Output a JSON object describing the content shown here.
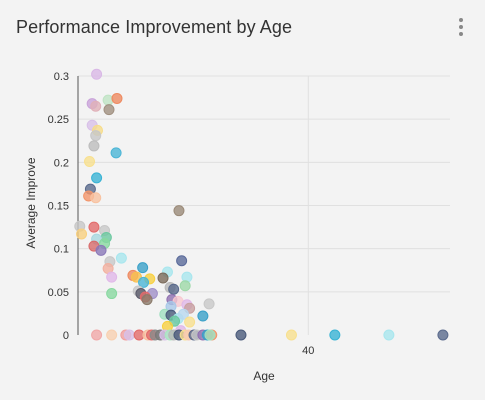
{
  "header": {
    "title": "Performance Improvement by Age",
    "menu_icon": "more-vert-icon"
  },
  "chart_data": {
    "type": "scatter",
    "title": "Performance Improvement by Age",
    "xlabel": "Age",
    "ylabel": "Average Improve",
    "xlim": [
      14,
      56
    ],
    "ylim": [
      0,
      0.3
    ],
    "x_ticks": [
      40
    ],
    "y_ticks": [
      0,
      0.05,
      0.1,
      0.15,
      0.2,
      0.25,
      0.3
    ],
    "grid": true,
    "legend": "none",
    "points": [
      {
        "x": 16.1,
        "y": 0.302,
        "c": "#d9b8e6"
      },
      {
        "x": 15.6,
        "y": 0.268,
        "c": "#c9a3d9"
      },
      {
        "x": 16.0,
        "y": 0.265,
        "c": "#e0b0b8"
      },
      {
        "x": 17.4,
        "y": 0.272,
        "c": "#bfe3c4"
      },
      {
        "x": 17.5,
        "y": 0.261,
        "c": "#a09080"
      },
      {
        "x": 18.4,
        "y": 0.274,
        "c": "#ee8a60"
      },
      {
        "x": 15.6,
        "y": 0.243,
        "c": "#d8c0e8"
      },
      {
        "x": 16.2,
        "y": 0.237,
        "c": "#f6dc8a"
      },
      {
        "x": 16.0,
        "y": 0.231,
        "c": "#c7c7c7"
      },
      {
        "x": 15.8,
        "y": 0.219,
        "c": "#bdbdbd"
      },
      {
        "x": 18.3,
        "y": 0.211,
        "c": "#4bb5d6"
      },
      {
        "x": 15.3,
        "y": 0.201,
        "c": "#f8e08e"
      },
      {
        "x": 16.1,
        "y": 0.182,
        "c": "#39b3d4"
      },
      {
        "x": 15.4,
        "y": 0.169,
        "c": "#5a6a8c"
      },
      {
        "x": 15.2,
        "y": 0.161,
        "c": "#f2956a"
      },
      {
        "x": 16.0,
        "y": 0.159,
        "c": "#f8c2a0"
      },
      {
        "x": 25.4,
        "y": 0.144,
        "c": "#9a8a78"
      },
      {
        "x": 14.2,
        "y": 0.126,
        "c": "#c7c7c7"
      },
      {
        "x": 15.8,
        "y": 0.125,
        "c": "#e26a6a"
      },
      {
        "x": 17.0,
        "y": 0.121,
        "c": "#c8c8c8"
      },
      {
        "x": 14.4,
        "y": 0.117,
        "c": "#f8d080"
      },
      {
        "x": 17.2,
        "y": 0.113,
        "c": "#6cc8a0"
      },
      {
        "x": 16.1,
        "y": 0.111,
        "c": "#a8d8e0"
      },
      {
        "x": 17.0,
        "y": 0.106,
        "c": "#88d8a0"
      },
      {
        "x": 15.8,
        "y": 0.103,
        "c": "#d86a6a"
      },
      {
        "x": 16.6,
        "y": 0.098,
        "c": "#8a78b8"
      },
      {
        "x": 18.9,
        "y": 0.089,
        "c": "#a8e6ee"
      },
      {
        "x": 25.7,
        "y": 0.086,
        "c": "#5a6a9a"
      },
      {
        "x": 17.6,
        "y": 0.085,
        "c": "#c8c8c8"
      },
      {
        "x": 21.3,
        "y": 0.078,
        "c": "#39a0c8"
      },
      {
        "x": 17.4,
        "y": 0.077,
        "c": "#f2b0a0"
      },
      {
        "x": 24.1,
        "y": 0.073,
        "c": "#a8e6ee"
      },
      {
        "x": 20.2,
        "y": 0.069,
        "c": "#ee8a60"
      },
      {
        "x": 17.8,
        "y": 0.067,
        "c": "#e0b8e8"
      },
      {
        "x": 20.6,
        "y": 0.067,
        "c": "#f8c050"
      },
      {
        "x": 23.6,
        "y": 0.066,
        "c": "#7a6a5a"
      },
      {
        "x": 22.1,
        "y": 0.065,
        "c": "#f8d040"
      },
      {
        "x": 26.3,
        "y": 0.067,
        "c": "#a8e6ee"
      },
      {
        "x": 21.4,
        "y": 0.061,
        "c": "#4bb5d6"
      },
      {
        "x": 26.1,
        "y": 0.057,
        "c": "#9ed8a8"
      },
      {
        "x": 24.4,
        "y": 0.055,
        "c": "#b8b8b8"
      },
      {
        "x": 24.8,
        "y": 0.053,
        "c": "#5a6a8c"
      },
      {
        "x": 20.8,
        "y": 0.051,
        "c": "#c8c8c8"
      },
      {
        "x": 17.8,
        "y": 0.048,
        "c": "#88d8a0"
      },
      {
        "x": 21.1,
        "y": 0.048,
        "c": "#5a5a6a"
      },
      {
        "x": 22.4,
        "y": 0.048,
        "c": "#a090c8"
      },
      {
        "x": 21.6,
        "y": 0.044,
        "c": "#e26a6a"
      },
      {
        "x": 21.8,
        "y": 0.041,
        "c": "#8a7a6a"
      },
      {
        "x": 24.6,
        "y": 0.041,
        "c": "#9070b0"
      },
      {
        "x": 25.3,
        "y": 0.039,
        "c": "#f8c8d0"
      },
      {
        "x": 28.8,
        "y": 0.036,
        "c": "#c8c8c8"
      },
      {
        "x": 24.5,
        "y": 0.033,
        "c": "#a8c8e8"
      },
      {
        "x": 26.3,
        "y": 0.035,
        "c": "#e0b8e8"
      },
      {
        "x": 26.6,
        "y": 0.031,
        "c": "#c8a0a0"
      },
      {
        "x": 23.8,
        "y": 0.024,
        "c": "#a0e0c0"
      },
      {
        "x": 24.5,
        "y": 0.023,
        "c": "#4a5a7a"
      },
      {
        "x": 25.3,
        "y": 0.019,
        "c": "#a8e6ee"
      },
      {
        "x": 25.9,
        "y": 0.024,
        "c": "#b8d8f0"
      },
      {
        "x": 28.1,
        "y": 0.022,
        "c": "#39a0c8"
      },
      {
        "x": 24.9,
        "y": 0.016,
        "c": "#6cc8a0"
      },
      {
        "x": 26.6,
        "y": 0.015,
        "c": "#f8e08e"
      },
      {
        "x": 24.1,
        "y": 0.01,
        "c": "#f8d040"
      },
      {
        "x": 25.6,
        "y": 0.005,
        "c": "#e0b8e8"
      },
      {
        "x": 16.1,
        "y": 0.0,
        "c": "#f0a8a8"
      },
      {
        "x": 17.8,
        "y": 0.0,
        "c": "#f8d0b0"
      },
      {
        "x": 19.4,
        "y": 0.0,
        "c": "#f0a0a0"
      },
      {
        "x": 19.8,
        "y": 0.0,
        "c": "#d8c0e8"
      },
      {
        "x": 20.9,
        "y": 0.0,
        "c": "#e26a6a"
      },
      {
        "x": 21.9,
        "y": 0.0,
        "c": "#f8c0a0"
      },
      {
        "x": 22.3,
        "y": 0.0,
        "c": "#e26a6a"
      },
      {
        "x": 22.7,
        "y": 0.0,
        "c": "#8a8a8a"
      },
      {
        "x": 23.3,
        "y": 0.0,
        "c": "#7a7a7a"
      },
      {
        "x": 23.8,
        "y": 0.0,
        "c": "#d8c0e8"
      },
      {
        "x": 24.4,
        "y": 0.0,
        "c": "#a8e6c0"
      },
      {
        "x": 24.8,
        "y": 0.0,
        "c": "#b8b8b8"
      },
      {
        "x": 25.4,
        "y": 0.0,
        "c": "#4a5a7a"
      },
      {
        "x": 26.1,
        "y": 0.0,
        "c": "#f8e08e"
      },
      {
        "x": 26.5,
        "y": 0.0,
        "c": "#f8c8b0"
      },
      {
        "x": 27.1,
        "y": 0.0,
        "c": "#5a6a8c"
      },
      {
        "x": 27.4,
        "y": 0.0,
        "c": "#c8c8c8"
      },
      {
        "x": 28.1,
        "y": 0.0,
        "c": "#9070b0"
      },
      {
        "x": 28.6,
        "y": 0.0,
        "c": "#39a0c8"
      },
      {
        "x": 29.1,
        "y": 0.0,
        "c": "#f2956a"
      },
      {
        "x": 28.9,
        "y": 0.0,
        "c": "#a0e0c0"
      },
      {
        "x": 32.4,
        "y": 0.0,
        "c": "#4a5a7a"
      },
      {
        "x": 38.1,
        "y": 0.0,
        "c": "#f8e08e"
      },
      {
        "x": 43.0,
        "y": 0.0,
        "c": "#39b3d4"
      },
      {
        "x": 49.1,
        "y": 0.0,
        "c": "#a8e6ee"
      },
      {
        "x": 55.2,
        "y": 0.0,
        "c": "#5a6a8c"
      }
    ]
  }
}
